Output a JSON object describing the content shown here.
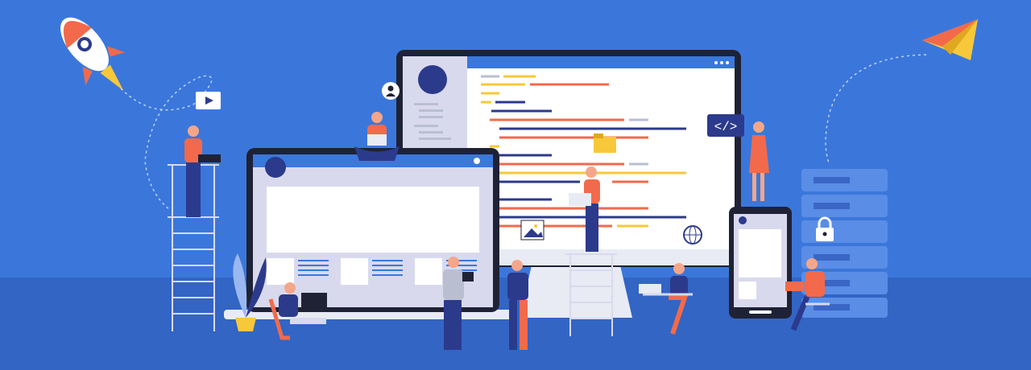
{
  "colors": {
    "sky": "#3b77db",
    "floor": "#3265c4",
    "frame": "#1f2235",
    "screen": "#ffffff",
    "sidebar": "#d9d9ee",
    "accent_blue": "#3a78dc",
    "navy": "#2c3a8c",
    "orange": "#f26a4b",
    "yellow": "#f7c83a",
    "grey": "#b9bfd0"
  },
  "icons": [
    "rocket-icon",
    "paper-plane-icon",
    "play-icon",
    "user-icon",
    "code-icon",
    "folder-icon",
    "image-icon",
    "globe-icon",
    "lock-icon",
    "plant-icon"
  ]
}
